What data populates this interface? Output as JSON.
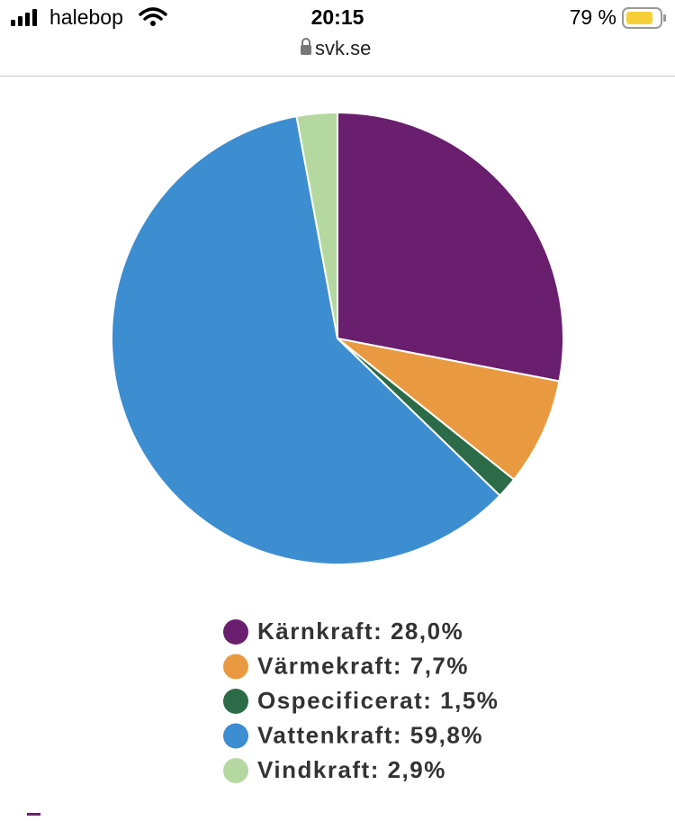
{
  "status_bar": {
    "carrier": "halebop",
    "time": "20:15",
    "battery": "79 %",
    "url": "svk.se"
  },
  "chart_data": {
    "type": "pie",
    "categories": [
      "Kärnkraft: 28,0%",
      "Värmekraft: 7,7%",
      "Ospecificerat: 1,5%",
      "Vattenkraft: 59,8%",
      "Vindkraft: 2,9%"
    ],
    "values": [
      28.0,
      7.7,
      1.5,
      59.8,
      2.9
    ],
    "colors": [
      "#6a1e6e",
      "#e99a40",
      "#2c6b48",
      "#3d8dd1",
      "#b5d8a0"
    ]
  }
}
